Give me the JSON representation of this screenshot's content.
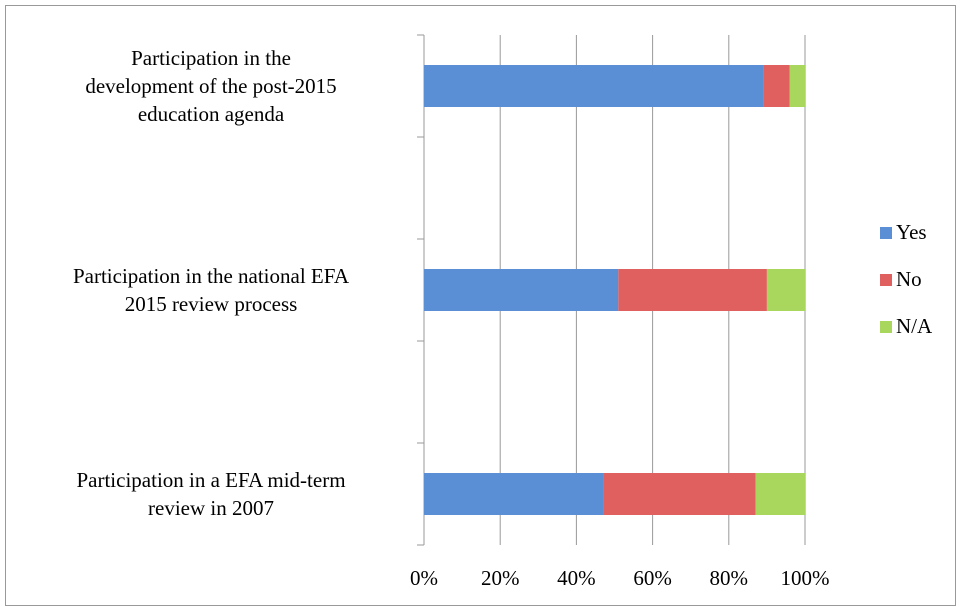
{
  "chart_data": {
    "type": "bar",
    "orientation": "horizontal",
    "stacked": true,
    "categories": [
      "Participation in the\ndevelopment of the post-2015\neducation agenda",
      null,
      "Participation in the national EFA\n2015 review process",
      null,
      "Participation in a EFA mid-term\nreview in 2007"
    ],
    "series": [
      {
        "name": "Yes",
        "color": "#5a8fd6",
        "values": [
          89,
          null,
          51,
          null,
          47
        ]
      },
      {
        "name": "No",
        "color": "#e05f5f",
        "values": [
          7,
          null,
          39,
          null,
          40
        ]
      },
      {
        "name": "N/A",
        "color": "#a9d65c",
        "values": [
          4,
          null,
          10,
          null,
          13
        ]
      }
    ],
    "xlim": [
      0,
      100
    ],
    "xticks": [
      {
        "value": 0,
        "label": "0%"
      },
      {
        "value": 20,
        "label": "20%"
      },
      {
        "value": 40,
        "label": "40%"
      },
      {
        "value": 60,
        "label": "60%"
      },
      {
        "value": 80,
        "label": "80%"
      },
      {
        "value": 100,
        "label": "100%"
      }
    ],
    "grid": true,
    "legend": "right"
  }
}
